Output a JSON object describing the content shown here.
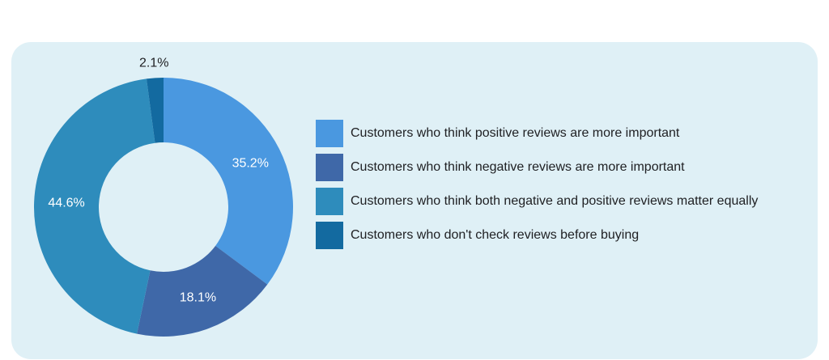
{
  "chart_data": {
    "type": "pie",
    "title": "",
    "donut": true,
    "legend_position": "right",
    "slices": [
      {
        "label": "Customers who think positive reviews are more important",
        "value": 35.2,
        "value_label": "35.2%",
        "color": "#4a98e0"
      },
      {
        "label": "Customers who think negative reviews are more important",
        "value": 18.1,
        "value_label": "18.1%",
        "color": "#3f68a8"
      },
      {
        "label": "Customers who think both negative and positive reviews matter equally",
        "value": 44.6,
        "value_label": "44.6%",
        "color": "#2e8cbc"
      },
      {
        "label": "Customers who don't check reviews before buying",
        "value": 2.1,
        "value_label": "2.1%",
        "color": "#136aa0"
      }
    ]
  }
}
